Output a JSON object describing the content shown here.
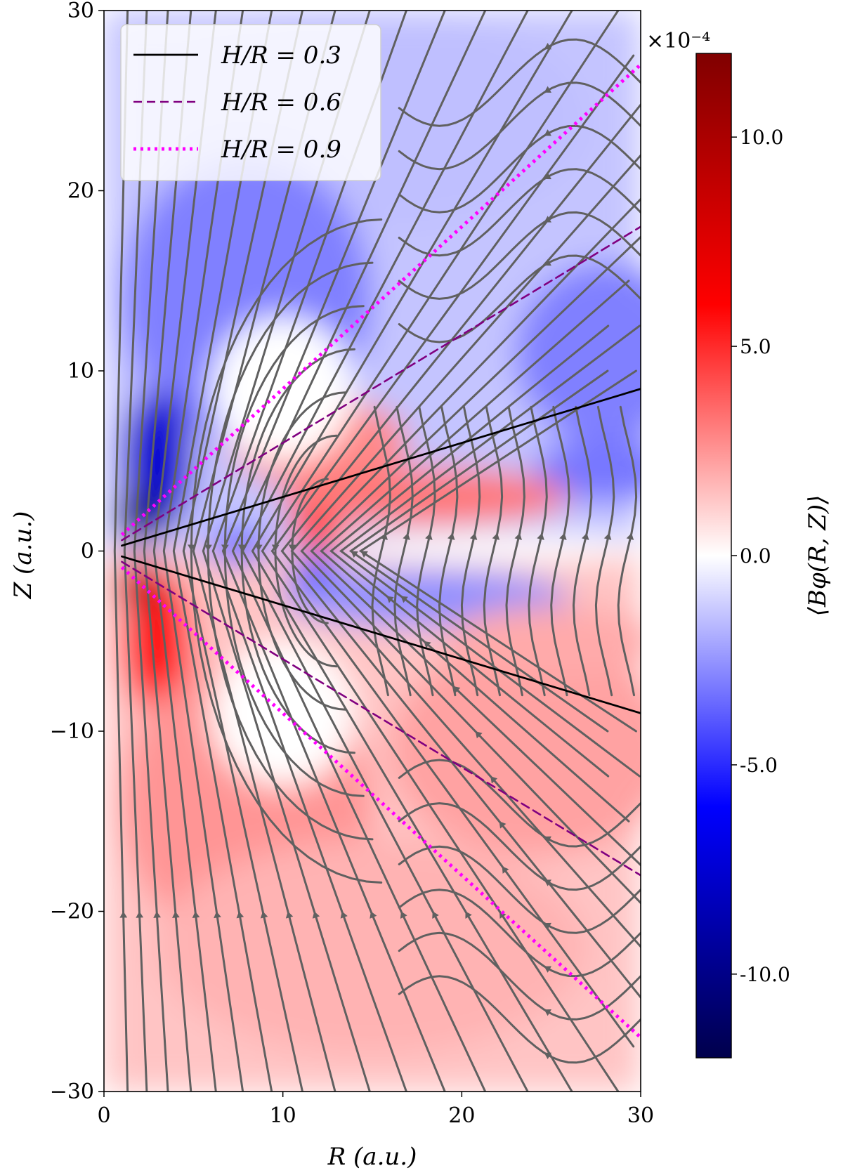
{
  "chart_data": {
    "type": "heatmap",
    "xlabel": "R (a.u.)",
    "ylabel": "Z (a.u.)",
    "xlim": [
      0,
      30
    ],
    "ylim": [
      -30,
      30
    ],
    "x_ticks": [
      0,
      10,
      20,
      30
    ],
    "x_tick_labels": [
      "0",
      "10",
      "20",
      "30"
    ],
    "y_ticks": [
      30,
      20,
      10,
      0,
      -10,
      -20,
      -30
    ],
    "y_tick_labels": [
      "30",
      "20",
      "10",
      "0",
      "−10",
      "−20",
      "−30"
    ],
    "colorbar": {
      "label": "⟨Bφ(R, Z)⟩",
      "multiplier": "×10⁻⁴",
      "range": [
        -12,
        12
      ],
      "ticks": [
        10,
        5,
        0,
        -5,
        -10
      ],
      "tick_labels": [
        "10.0",
        "5.0",
        "0.0",
        "-5.0",
        "-10.0"
      ],
      "colormap": "seismic",
      "colors": {
        "min": "#00004c",
        "mid_low": "#0000ff",
        "center": "#ffffff",
        "mid_high": "#ff0000",
        "max": "#800000"
      }
    },
    "series": [
      {
        "name": "H/R = 0.3",
        "slope": 0.3,
        "style": "solid",
        "color": "#000000",
        "x": [
          1,
          30
        ]
      },
      {
        "name": "H/R = 0.6",
        "slope": 0.6,
        "style": "dashed",
        "color": "#800080",
        "x": [
          1,
          30
        ]
      },
      {
        "name": "H/R = 0.9",
        "slope": 0.9,
        "style": "dotted",
        "color": "#ff00ff",
        "x": [
          1,
          30
        ]
      }
    ],
    "legend_position": "top-left",
    "streamlines": {
      "color": "#606060"
    }
  }
}
